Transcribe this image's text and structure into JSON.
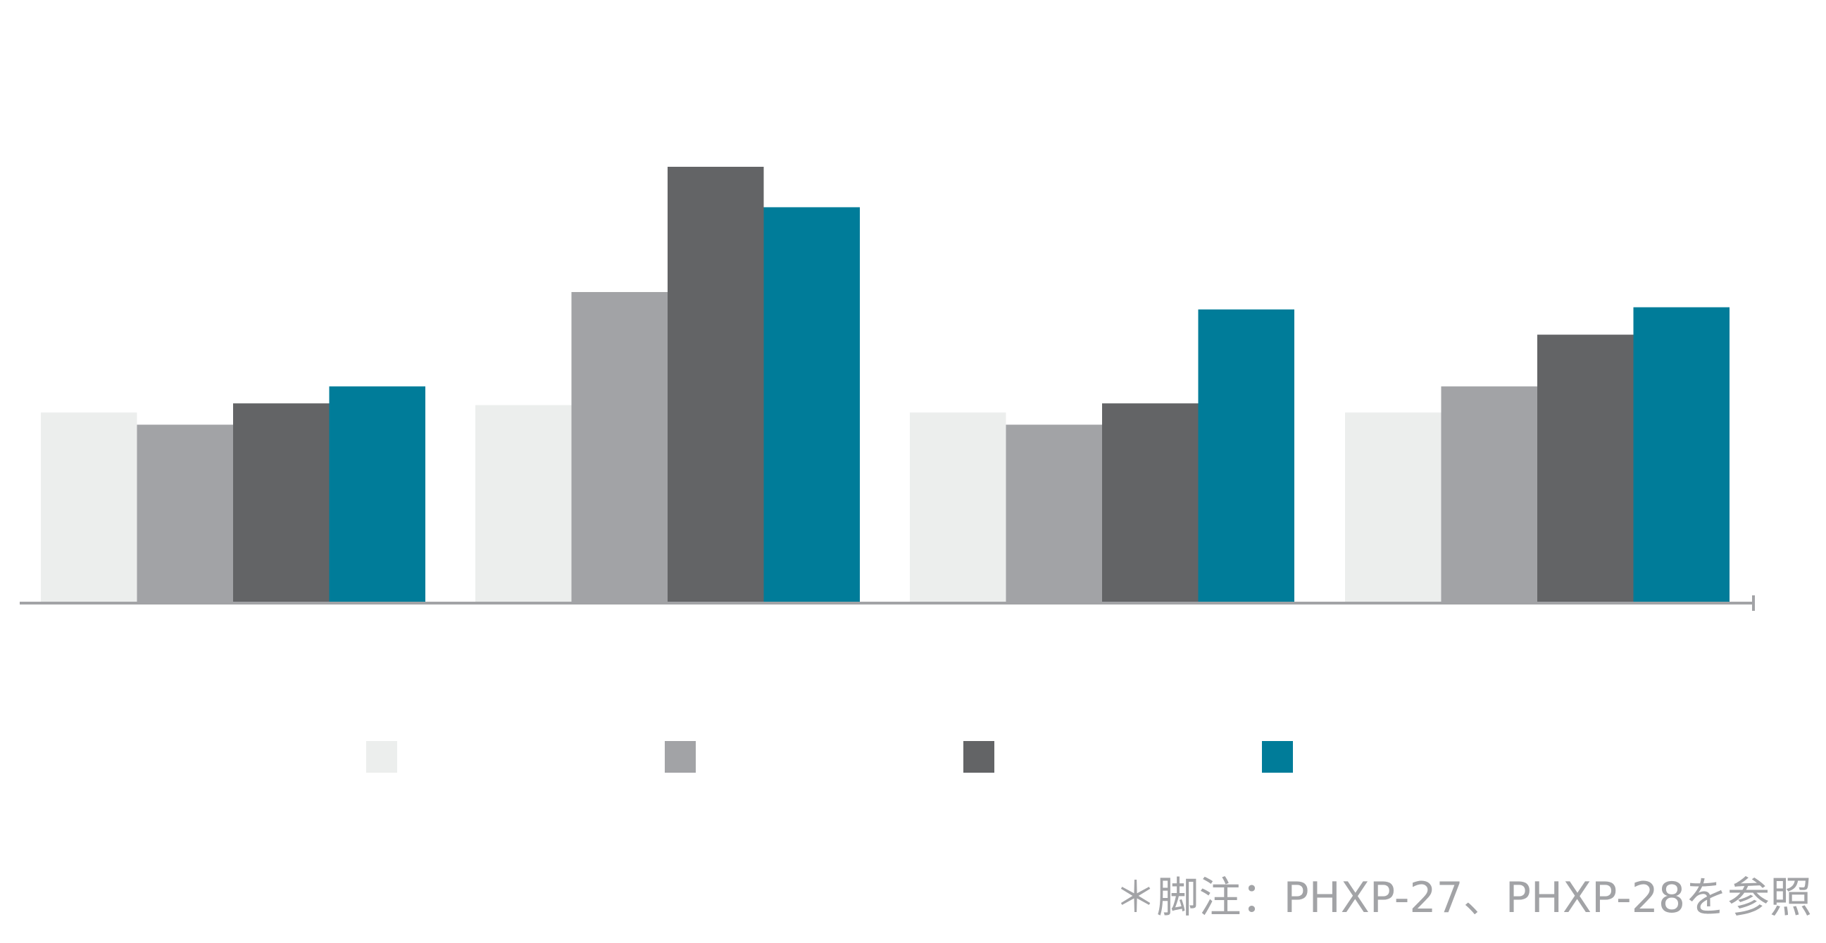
{
  "chart_data": {
    "type": "bar",
    "title": "",
    "xlabel": "",
    "ylabel": "",
    "categories": [
      "",
      "",
      "",
      ""
    ],
    "ylim": [
      0,
      100
    ],
    "grid": false,
    "legend_position": "bottom",
    "series": [
      {
        "color": "#eceeed",
        "values": [
          43.5,
          45.2,
          43.5,
          43.5
        ]
      },
      {
        "color": "#a2a3a6",
        "values": [
          40.7,
          71.2,
          40.7,
          49.5
        ]
      },
      {
        "color": "#636466",
        "values": [
          45.6,
          100,
          45.6,
          61.4
        ]
      },
      {
        "color": "#007c99",
        "values": [
          49.5,
          90.7,
          67.2,
          67.7
        ]
      }
    ]
  },
  "footnote": "＊脚注：PHXP-27、PHXP-28を参照"
}
